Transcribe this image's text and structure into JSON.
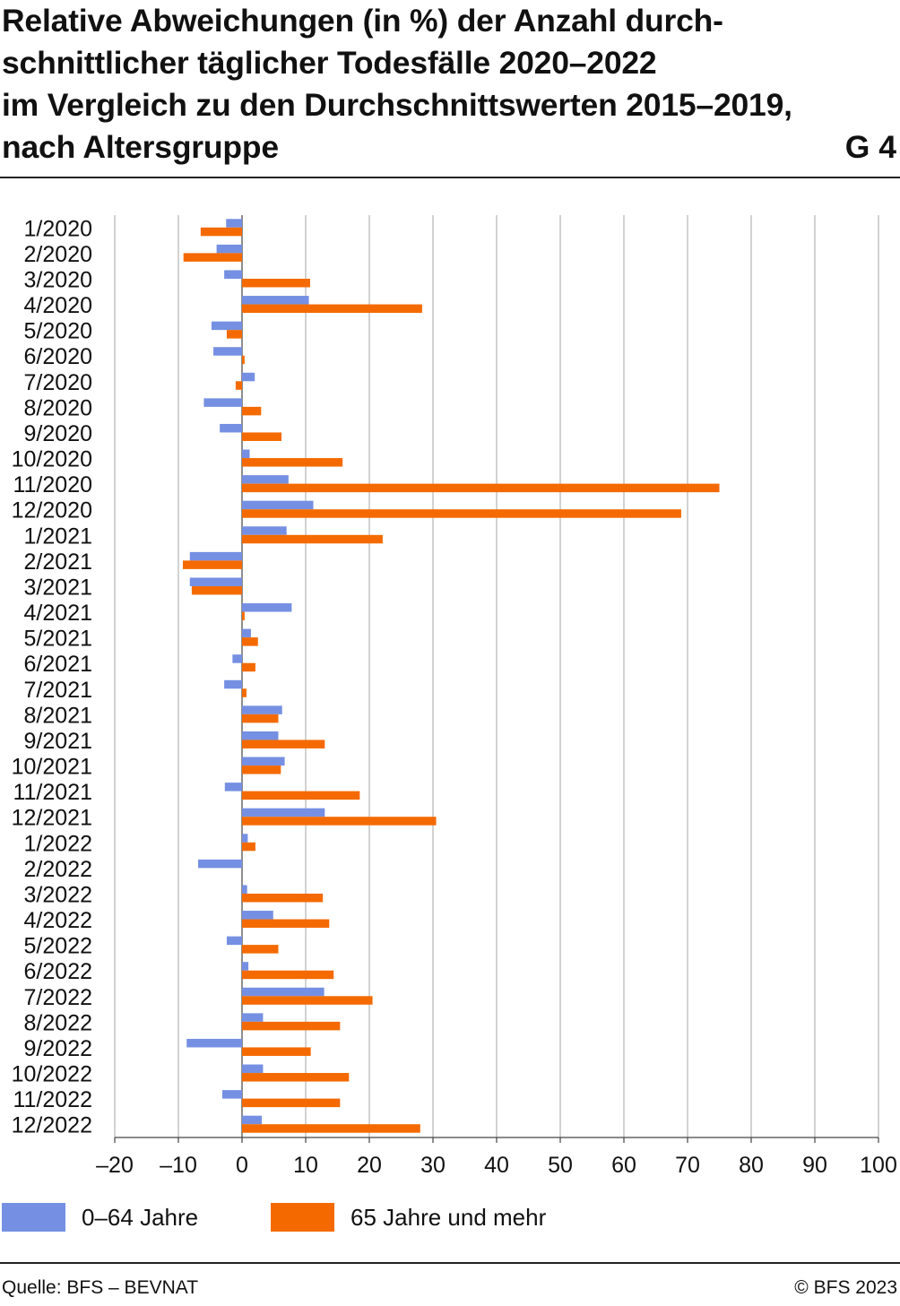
{
  "title": "Relative Abweichungen (in %) der Anzahl durch-\nschnittlicher täglicher Todesfälle 2020–2022\nim Vergleich zu den Durchschnittswerten 2015–2019,\nnach Altersgruppe",
  "chart_id": "G 4",
  "source": "Quelle: BFS – BEVNAT",
  "copyright": "© BFS 2023",
  "colors": {
    "series_0_64": "#7590e2",
    "series_65plus": "#f46a00",
    "grid": "#b4b4b4",
    "axis": "#444444"
  },
  "chart_data": {
    "type": "bar",
    "orientation": "horizontal",
    "title": "Relative Abweichungen (in %) der Anzahl durchschnittlicher täglicher Todesfälle 2020–2022 im Vergleich zu den Durchschnittswerten 2015–2019, nach Altersgruppe",
    "xlim": [
      -20,
      100
    ],
    "xticks": [
      -20,
      -10,
      0,
      10,
      20,
      30,
      40,
      50,
      60,
      70,
      80,
      90,
      100
    ],
    "xtick_labels": [
      "–20",
      "–10",
      "0",
      "10",
      "20",
      "30",
      "40",
      "50",
      "60",
      "70",
      "80",
      "90",
      "100"
    ],
    "grid": true,
    "legend_position": "bottom",
    "categories": [
      "1/2020",
      "2/2020",
      "3/2020",
      "4/2020",
      "5/2020",
      "6/2020",
      "7/2020",
      "8/2020",
      "9/2020",
      "10/2020",
      "11/2020",
      "12/2020",
      "1/2021",
      "2/2021",
      "3/2021",
      "4/2021",
      "5/2021",
      "6/2021",
      "7/2021",
      "8/2021",
      "9/2021",
      "10/2021",
      "11/2021",
      "12/2021",
      "1/2022",
      "2/2022",
      "3/2022",
      "4/2022",
      "5/2022",
      "6/2022",
      "7/2022",
      "8/2022",
      "9/2022",
      "10/2022",
      "11/2022",
      "12/2022"
    ],
    "series": [
      {
        "name": "0–64 Jahre",
        "values": [
          -2.5,
          -4.0,
          -2.8,
          10.5,
          -4.8,
          -4.5,
          2.0,
          -6.0,
          -3.5,
          1.2,
          7.3,
          11.2,
          7.0,
          -8.2,
          -8.2,
          7.8,
          1.4,
          -1.5,
          -2.8,
          6.3,
          5.7,
          6.7,
          -2.7,
          13.0,
          0.9,
          -6.9,
          0.8,
          4.9,
          -2.4,
          1.0,
          12.9,
          3.3,
          -8.7,
          3.3,
          -3.1,
          3.1
        ]
      },
      {
        "name": "65 Jahre und mehr",
        "values": [
          -6.5,
          -9.2,
          10.7,
          28.3,
          -2.4,
          0.4,
          -1.0,
          3.0,
          6.2,
          15.8,
          75.0,
          69.0,
          22.1,
          -9.3,
          -7.9,
          0.4,
          2.5,
          2.1,
          0.7,
          5.7,
          13.0,
          6.1,
          18.5,
          30.5,
          2.1,
          0.0,
          12.7,
          13.7,
          5.7,
          14.4,
          20.5,
          15.4,
          10.8,
          16.8,
          15.4,
          28.0
        ]
      }
    ]
  }
}
